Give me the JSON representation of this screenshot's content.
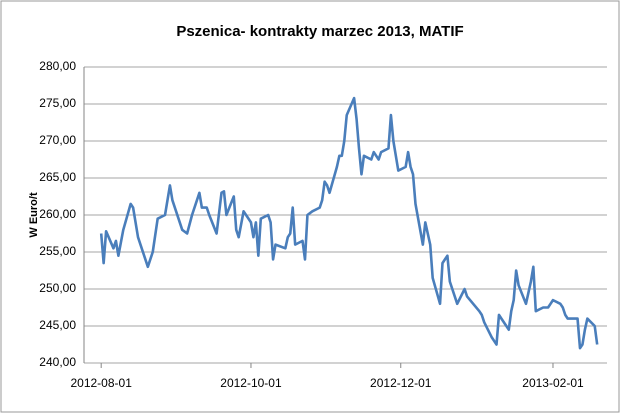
{
  "chart_data": {
    "type": "line",
    "title": "Pszenica- kontrakty marzec 2013, MATIF",
    "y_label": "W Euro/t",
    "x": [
      "2012-08-01",
      "2012-08-02",
      "2012-08-03",
      "2012-08-06",
      "2012-08-07",
      "2012-08-08",
      "2012-08-10",
      "2012-08-13",
      "2012-08-14",
      "2012-08-16",
      "2012-08-20",
      "2012-08-22",
      "2012-08-24",
      "2012-08-27",
      "2012-08-29",
      "2012-08-30",
      "2012-09-03",
      "2012-09-05",
      "2012-09-07",
      "2012-09-10",
      "2012-09-11",
      "2012-09-13",
      "2012-09-14",
      "2012-09-17",
      "2012-09-19",
      "2012-09-20",
      "2012-09-21",
      "2012-09-24",
      "2012-09-25",
      "2012-09-26",
      "2012-09-28",
      "2012-10-01",
      "2012-10-02",
      "2012-10-03",
      "2012-10-04",
      "2012-10-05",
      "2012-10-08",
      "2012-10-09",
      "2012-10-10",
      "2012-10-11",
      "2012-10-15",
      "2012-10-16",
      "2012-10-17",
      "2012-10-18",
      "2012-10-19",
      "2012-10-22",
      "2012-10-23",
      "2012-10-24",
      "2012-10-26",
      "2012-10-29",
      "2012-10-30",
      "2012-10-31",
      "2012-11-01",
      "2012-11-02",
      "2012-11-05",
      "2012-11-06",
      "2012-11-07",
      "2012-11-08",
      "2012-11-09",
      "2012-11-12",
      "2012-11-13",
      "2012-11-14",
      "2012-11-15",
      "2012-11-16",
      "2012-11-19",
      "2012-11-20",
      "2012-11-21",
      "2012-11-22",
      "2012-11-23",
      "2012-11-26",
      "2012-11-27",
      "2012-11-28",
      "2012-11-29",
      "2012-11-30",
      "2012-12-03",
      "2012-12-04",
      "2012-12-05",
      "2012-12-06",
      "2012-12-07",
      "2012-12-10",
      "2012-12-11",
      "2012-12-12",
      "2012-12-13",
      "2012-12-14",
      "2012-12-17",
      "2012-12-18",
      "2012-12-19",
      "2012-12-20",
      "2012-12-21",
      "2012-12-24",
      "2012-12-27",
      "2012-12-28",
      "2013-01-02",
      "2013-01-03",
      "2013-01-04",
      "2013-01-07",
      "2013-01-08",
      "2013-01-09",
      "2013-01-10",
      "2013-01-11",
      "2013-01-14",
      "2013-01-15",
      "2013-01-16",
      "2013-01-17",
      "2013-01-18",
      "2013-01-21",
      "2013-01-22",
      "2013-01-23",
      "2013-01-24",
      "2013-01-25",
      "2013-01-28",
      "2013-01-29",
      "2013-01-30",
      "2013-01-31",
      "2013-02-01",
      "2013-02-04",
      "2013-02-05",
      "2013-02-06",
      "2013-02-07",
      "2013-02-08",
      "2013-02-11",
      "2013-02-12",
      "2013-02-13",
      "2013-02-14",
      "2013-02-15",
      "2013-02-18",
      "2013-02-19"
    ],
    "series": [
      {
        "color": "#4a7ebb",
        "values": [
          257.5,
          253.5,
          257.8,
          255.5,
          256.5,
          254.5,
          258,
          261.5,
          261,
          257,
          253,
          255,
          259.5,
          260,
          264,
          262,
          258,
          257.5,
          260,
          263,
          261,
          261,
          260,
          257.5,
          263,
          263.2,
          260,
          262.5,
          258,
          257,
          260.5,
          259,
          257,
          259,
          254.5,
          259.5,
          260,
          259,
          254,
          256,
          255.5,
          257,
          257.5,
          261,
          256,
          256.5,
          254,
          260,
          260.5,
          261,
          262,
          264.5,
          264,
          263,
          266.5,
          268,
          268,
          270,
          273.5,
          275.8,
          273,
          269,
          265.5,
          268,
          267.5,
          268.5,
          268,
          267.5,
          268.5,
          269,
          273.5,
          270,
          268,
          266,
          266.5,
          268.5,
          266.5,
          265.5,
          261.5,
          256,
          259,
          257.5,
          256,
          251.5,
          248,
          253.5,
          254,
          254.5,
          251,
          248,
          250,
          249,
          247,
          246.5,
          245.5,
          243.5,
          243,
          242.5,
          246.5,
          246,
          244.5,
          247,
          248.5,
          252.5,
          250.5,
          248,
          249.5,
          251,
          253,
          247,
          247.5,
          247.5,
          247.5,
          248,
          248.5,
          248,
          247.5,
          246.5,
          246,
          246,
          246,
          242,
          242.5,
          244.5,
          246,
          245,
          242.5
        ]
      }
    ],
    "xlim": [
      "2012-07-25",
      "2013-02-23"
    ],
    "xticks": [
      "2012-08-01",
      "2012-10-01",
      "2012-12-01",
      "2013-02-01"
    ],
    "ylim": [
      240,
      280
    ],
    "yticks": [
      {
        "value": 240,
        "label": "240,00"
      },
      {
        "value": 245,
        "label": "245,00"
      },
      {
        "value": 250,
        "label": "250,00"
      },
      {
        "value": 255,
        "label": "255,00"
      },
      {
        "value": 260,
        "label": "260,00"
      },
      {
        "value": 265,
        "label": "265,00"
      },
      {
        "value": 270,
        "label": "270,00"
      },
      {
        "value": 275,
        "label": "275,00"
      },
      {
        "value": 280,
        "label": "280,00"
      }
    ],
    "grid": true
  }
}
